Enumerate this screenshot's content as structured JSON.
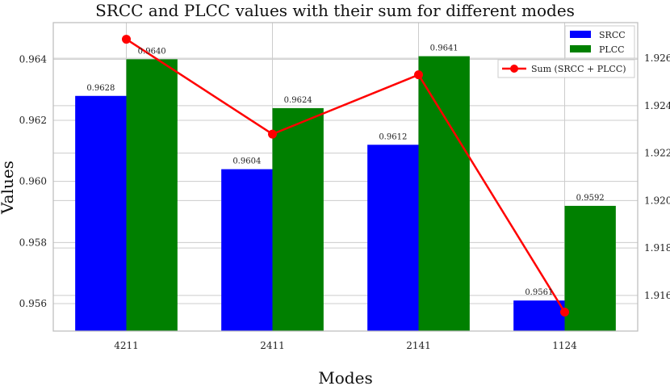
{
  "chart_data": {
    "type": "bar+line",
    "title": "SRCC and PLCC values with their sum for different modes",
    "xlabel": "Modes",
    "ylabel": "Values",
    "categories": [
      "4211",
      "2411",
      "2141",
      "1124"
    ],
    "series": [
      {
        "name": "SRCC",
        "type": "bar",
        "axis": "left",
        "color": "#0000ff",
        "values": [
          0.9628,
          0.9604,
          0.9612,
          0.9561
        ],
        "labels": [
          "0.9628",
          "0.9604",
          "0.9612",
          "0.9561"
        ]
      },
      {
        "name": "PLCC",
        "type": "bar",
        "axis": "left",
        "color": "#008000",
        "values": [
          0.964,
          0.9624,
          0.9641,
          0.9592
        ],
        "labels": [
          "0.9640",
          "0.9624",
          "0.9641",
          "0.9592"
        ]
      },
      {
        "name": "Sum (SRCC + PLCC)",
        "type": "line",
        "axis": "right",
        "color": "#ff0000",
        "values": [
          1.9268,
          1.9228,
          1.9253,
          1.9153
        ]
      }
    ],
    "ylim_left": [
      0.9551,
      0.9652
    ],
    "yticks_left": [
      "0.956",
      "0.958",
      "0.960",
      "0.962",
      "0.964"
    ],
    "ylim_right": [
      1.9145,
      1.9275
    ],
    "yticks_right": [
      "1.916",
      "1.918",
      "1.920",
      "1.922",
      "1.924",
      "1.926"
    ],
    "legend": {
      "location": "top-right",
      "entries": [
        "SRCC",
        "PLCC",
        "Sum (SRCC + PLCC)"
      ]
    },
    "grid": true
  }
}
